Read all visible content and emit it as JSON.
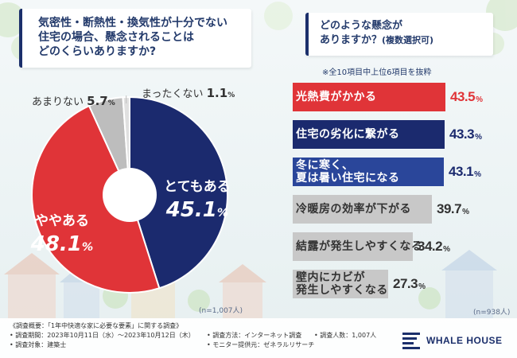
{
  "question": {
    "main": "気密性・断熱性・換気性が十分でない\n住宅の場合、懸念されることは\nどのくらいありますか?",
    "sub_line1": "どのような懸念が",
    "sub_line2": "ありますか？",
    "sub_line2_small": "(複数選択可)",
    "note": "※全10項目中上位6項目を抜粋"
  },
  "chart_data": [
    {
      "type": "pie",
      "title": "気密性・断熱性・換気性が十分でない住宅の場合、懸念されることはどのくらいありますか?",
      "sample": "(n=1,007人)",
      "slices": [
        {
          "label": "とてもある",
          "value": 45.1,
          "value_text": "45.1",
          "color": "#1b2a6e"
        },
        {
          "label": "ややある",
          "value": 48.1,
          "value_text": "48.1",
          "color": "#e03438"
        },
        {
          "label": "あまりない",
          "value": 5.7,
          "value_text": "5.7",
          "color": "#bdbdbd"
        },
        {
          "label": "まったくない",
          "value": 1.1,
          "value_text": "1.1",
          "color": "#e0e0e0"
        }
      ]
    },
    {
      "type": "bar",
      "orientation": "horizontal",
      "title": "どのような懸念がありますか？(複数選択可)",
      "sample": "(n=938人)",
      "categories": [
        "光熱費がかかる",
        "住宅の劣化に繋がる",
        "冬に寒く、\n夏は暑い住宅になる",
        "冷暖房の効率が下がる",
        "結露が発生しやすくなる",
        "壁内にカビが\n発生しやすくなる"
      ],
      "values": [
        43.5,
        43.3,
        43.1,
        39.7,
        34.2,
        27.3
      ],
      "value_texts": [
        "43.5",
        "43.3",
        "43.1",
        "39.7",
        "34.2",
        "27.3"
      ],
      "colors": [
        "#e03438",
        "#1b2a6e",
        "#2a469a",
        "#c8c8c8",
        "#c8c8c8",
        "#c8c8c8"
      ],
      "unit": "%"
    }
  ],
  "footer": {
    "overview": "《調査概要：「1年中快適な家に必要な要素」に関する調査》",
    "period": "• 調査期間：2023年10月11日（水）～2023年10月12日（木）",
    "target": "• 調査対象：建築士",
    "method": "• 調査方法：インターネット調査",
    "monitor": "• モニター提供元：ゼネラルリサーチ",
    "count": "• 調査人数：1,007人"
  },
  "brand": {
    "name": "WHALE HOUSE",
    "color": "#1b2f6b"
  }
}
